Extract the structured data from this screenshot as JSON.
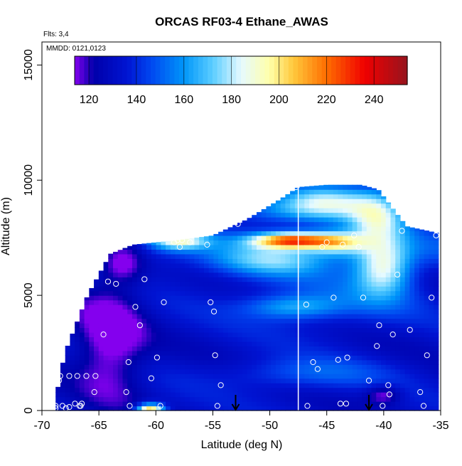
{
  "chart_data": {
    "type": "heatmap",
    "title": "ORCAS RF03-4 Ethane_AWAS",
    "flights_label": "Flts: 3,4",
    "date_label": "MMDD: 0121,0123",
    "xlabel": "Latitude (deg N)",
    "ylabel": "Altitude (m)",
    "xlim": [
      -70,
      -35
    ],
    "ylim": [
      0,
      16000
    ],
    "x_ticks": [
      -70,
      -65,
      -60,
      -55,
      -50,
      -45,
      -40,
      -35
    ],
    "y_ticks": [
      0,
      5000,
      10000,
      15000
    ],
    "colorbar": {
      "range": [
        114,
        254
      ],
      "ticks": [
        120,
        140,
        160,
        180,
        200,
        220,
        240
      ]
    },
    "grid": false,
    "domain_envelope": [
      {
        "lat": -68.8,
        "top": 500
      },
      {
        "lat": -68.0,
        "top": 2500
      },
      {
        "lat": -66.0,
        "top": 5000
      },
      {
        "lat": -64.0,
        "top": 6800
      },
      {
        "lat": -62.0,
        "top": 7200
      },
      {
        "lat": -58.0,
        "top": 7400
      },
      {
        "lat": -55.0,
        "top": 7600
      },
      {
        "lat": -52.0,
        "top": 8300
      },
      {
        "lat": -49.0,
        "top": 9200
      },
      {
        "lat": -47.5,
        "top": 9700
      },
      {
        "lat": -45.0,
        "top": 9800
      },
      {
        "lat": -42.0,
        "top": 9800
      },
      {
        "lat": -40.5,
        "top": 9600
      },
      {
        "lat": -38.0,
        "top": 8000
      },
      {
        "lat": -35.2,
        "top": 7700
      }
    ],
    "domain_bottom": 0,
    "field_features": [
      {
        "lat": -48.0,
        "alt": 7400,
        "slat": 3.5,
        "salt": 350,
        "amp": 85
      },
      {
        "lat": -44.0,
        "alt": 7300,
        "slat": 2.5,
        "salt": 500,
        "amp": 45
      },
      {
        "lat": -45.0,
        "alt": 9000,
        "slat": 4.0,
        "salt": 800,
        "amp": 45
      },
      {
        "lat": -40.5,
        "alt": 8400,
        "slat": 2.5,
        "salt": 1200,
        "amp": 45
      },
      {
        "lat": -50.0,
        "alt": 8700,
        "slat": 4.0,
        "salt": 600,
        "amp": 20
      },
      {
        "lat": -58.0,
        "alt": 7400,
        "slat": 2.5,
        "salt": 400,
        "amp": 50
      },
      {
        "lat": -50.0,
        "alt": 6500,
        "slat": 5.0,
        "salt": 700,
        "amp": 30
      },
      {
        "lat": -40.0,
        "alt": 6200,
        "slat": 2.5,
        "salt": 1200,
        "amp": 50
      },
      {
        "lat": -48.0,
        "alt": 4500,
        "slat": 4.0,
        "salt": 500,
        "amp": 25
      },
      {
        "lat": -60.5,
        "alt": 0,
        "slat": 1.2,
        "salt": 300,
        "amp": 85
      },
      {
        "lat": -63.0,
        "alt": 6500,
        "slat": 2.0,
        "salt": 900,
        "amp": -25
      },
      {
        "lat": -64.0,
        "alt": 3000,
        "slat": 3.0,
        "salt": 2500,
        "amp": -25
      },
      {
        "lat": -40.0,
        "alt": 700,
        "slat": 1.5,
        "salt": 400,
        "amp": -20
      }
    ],
    "observation_points": [
      [
        -68.8,
        100
      ],
      [
        -68.8,
        200
      ],
      [
        -68.2,
        200
      ],
      [
        -67.9,
        100
      ],
      [
        -67.6,
        150
      ],
      [
        -67.1,
        300
      ],
      [
        -66.7,
        200
      ],
      [
        -66.5,
        300
      ],
      [
        -68.5,
        1300
      ],
      [
        -68.4,
        1500
      ],
      [
        -67.6,
        1500
      ],
      [
        -66.9,
        1500
      ],
      [
        -66.1,
        1500
      ],
      [
        -65.3,
        1500
      ],
      [
        -65.4,
        800
      ],
      [
        -66.6,
        200
      ],
      [
        -64.6,
        3300
      ],
      [
        -64.2,
        5600
      ],
      [
        -63.5,
        5500
      ],
      [
        -63.8,
        7100
      ],
      [
        -62.4,
        2100
      ],
      [
        -62.3,
        200
      ],
      [
        -62.6,
        800
      ],
      [
        -61.8,
        4500
      ],
      [
        -61.4,
        3700
      ],
      [
        -61.0,
        5700
      ],
      [
        -60.4,
        1400
      ],
      [
        -59.9,
        2300
      ],
      [
        -59.6,
        200
      ],
      [
        -59.3,
        4700
      ],
      [
        -58.4,
        7300
      ],
      [
        -58.1,
        7400
      ],
      [
        -57.9,
        7100
      ],
      [
        -57.7,
        7400
      ],
      [
        -57.0,
        7300
      ],
      [
        -55.7,
        8300
      ],
      [
        -55.5,
        7200
      ],
      [
        -55.2,
        4700
      ],
      [
        -54.9,
        4300
      ],
      [
        -54.8,
        2400
      ],
      [
        -54.3,
        1100
      ],
      [
        -54.6,
        200
      ],
      [
        -52.8,
        8100
      ],
      [
        -47.7,
        9700
      ],
      [
        -46.8,
        4600
      ],
      [
        -46.2,
        2100
      ],
      [
        -45.8,
        1800
      ],
      [
        -45.4,
        7100
      ],
      [
        -45.0,
        7300
      ],
      [
        -44.4,
        4900
      ],
      [
        -44.0,
        2200
      ],
      [
        -43.6,
        7200
      ],
      [
        -43.3,
        300
      ],
      [
        -43.2,
        2300
      ],
      [
        -42.6,
        7600
      ],
      [
        -42.2,
        7100
      ],
      [
        -41.8,
        4900
      ],
      [
        -41.3,
        1300
      ],
      [
        -40.6,
        2800
      ],
      [
        -40.4,
        3700
      ],
      [
        -40.1,
        200
      ],
      [
        -39.6,
        1100
      ],
      [
        -39.5,
        700
      ],
      [
        -39.2,
        3300
      ],
      [
        -38.8,
        5900
      ],
      [
        -38.4,
        7800
      ],
      [
        -37.7,
        3500
      ],
      [
        -36.8,
        800
      ],
      [
        -36.5,
        200
      ],
      [
        -35.8,
        4900
      ],
      [
        -35.4,
        7600
      ],
      [
        -36.2,
        2400
      ],
      [
        -46.7,
        200
      ],
      [
        -43.8,
        300
      ]
    ],
    "annotations": [
      {
        "type": "arrow",
        "lat": -53.0
      },
      {
        "type": "arrow",
        "lat": -41.3
      },
      {
        "type": "vline",
        "lat": -47.5
      }
    ]
  }
}
